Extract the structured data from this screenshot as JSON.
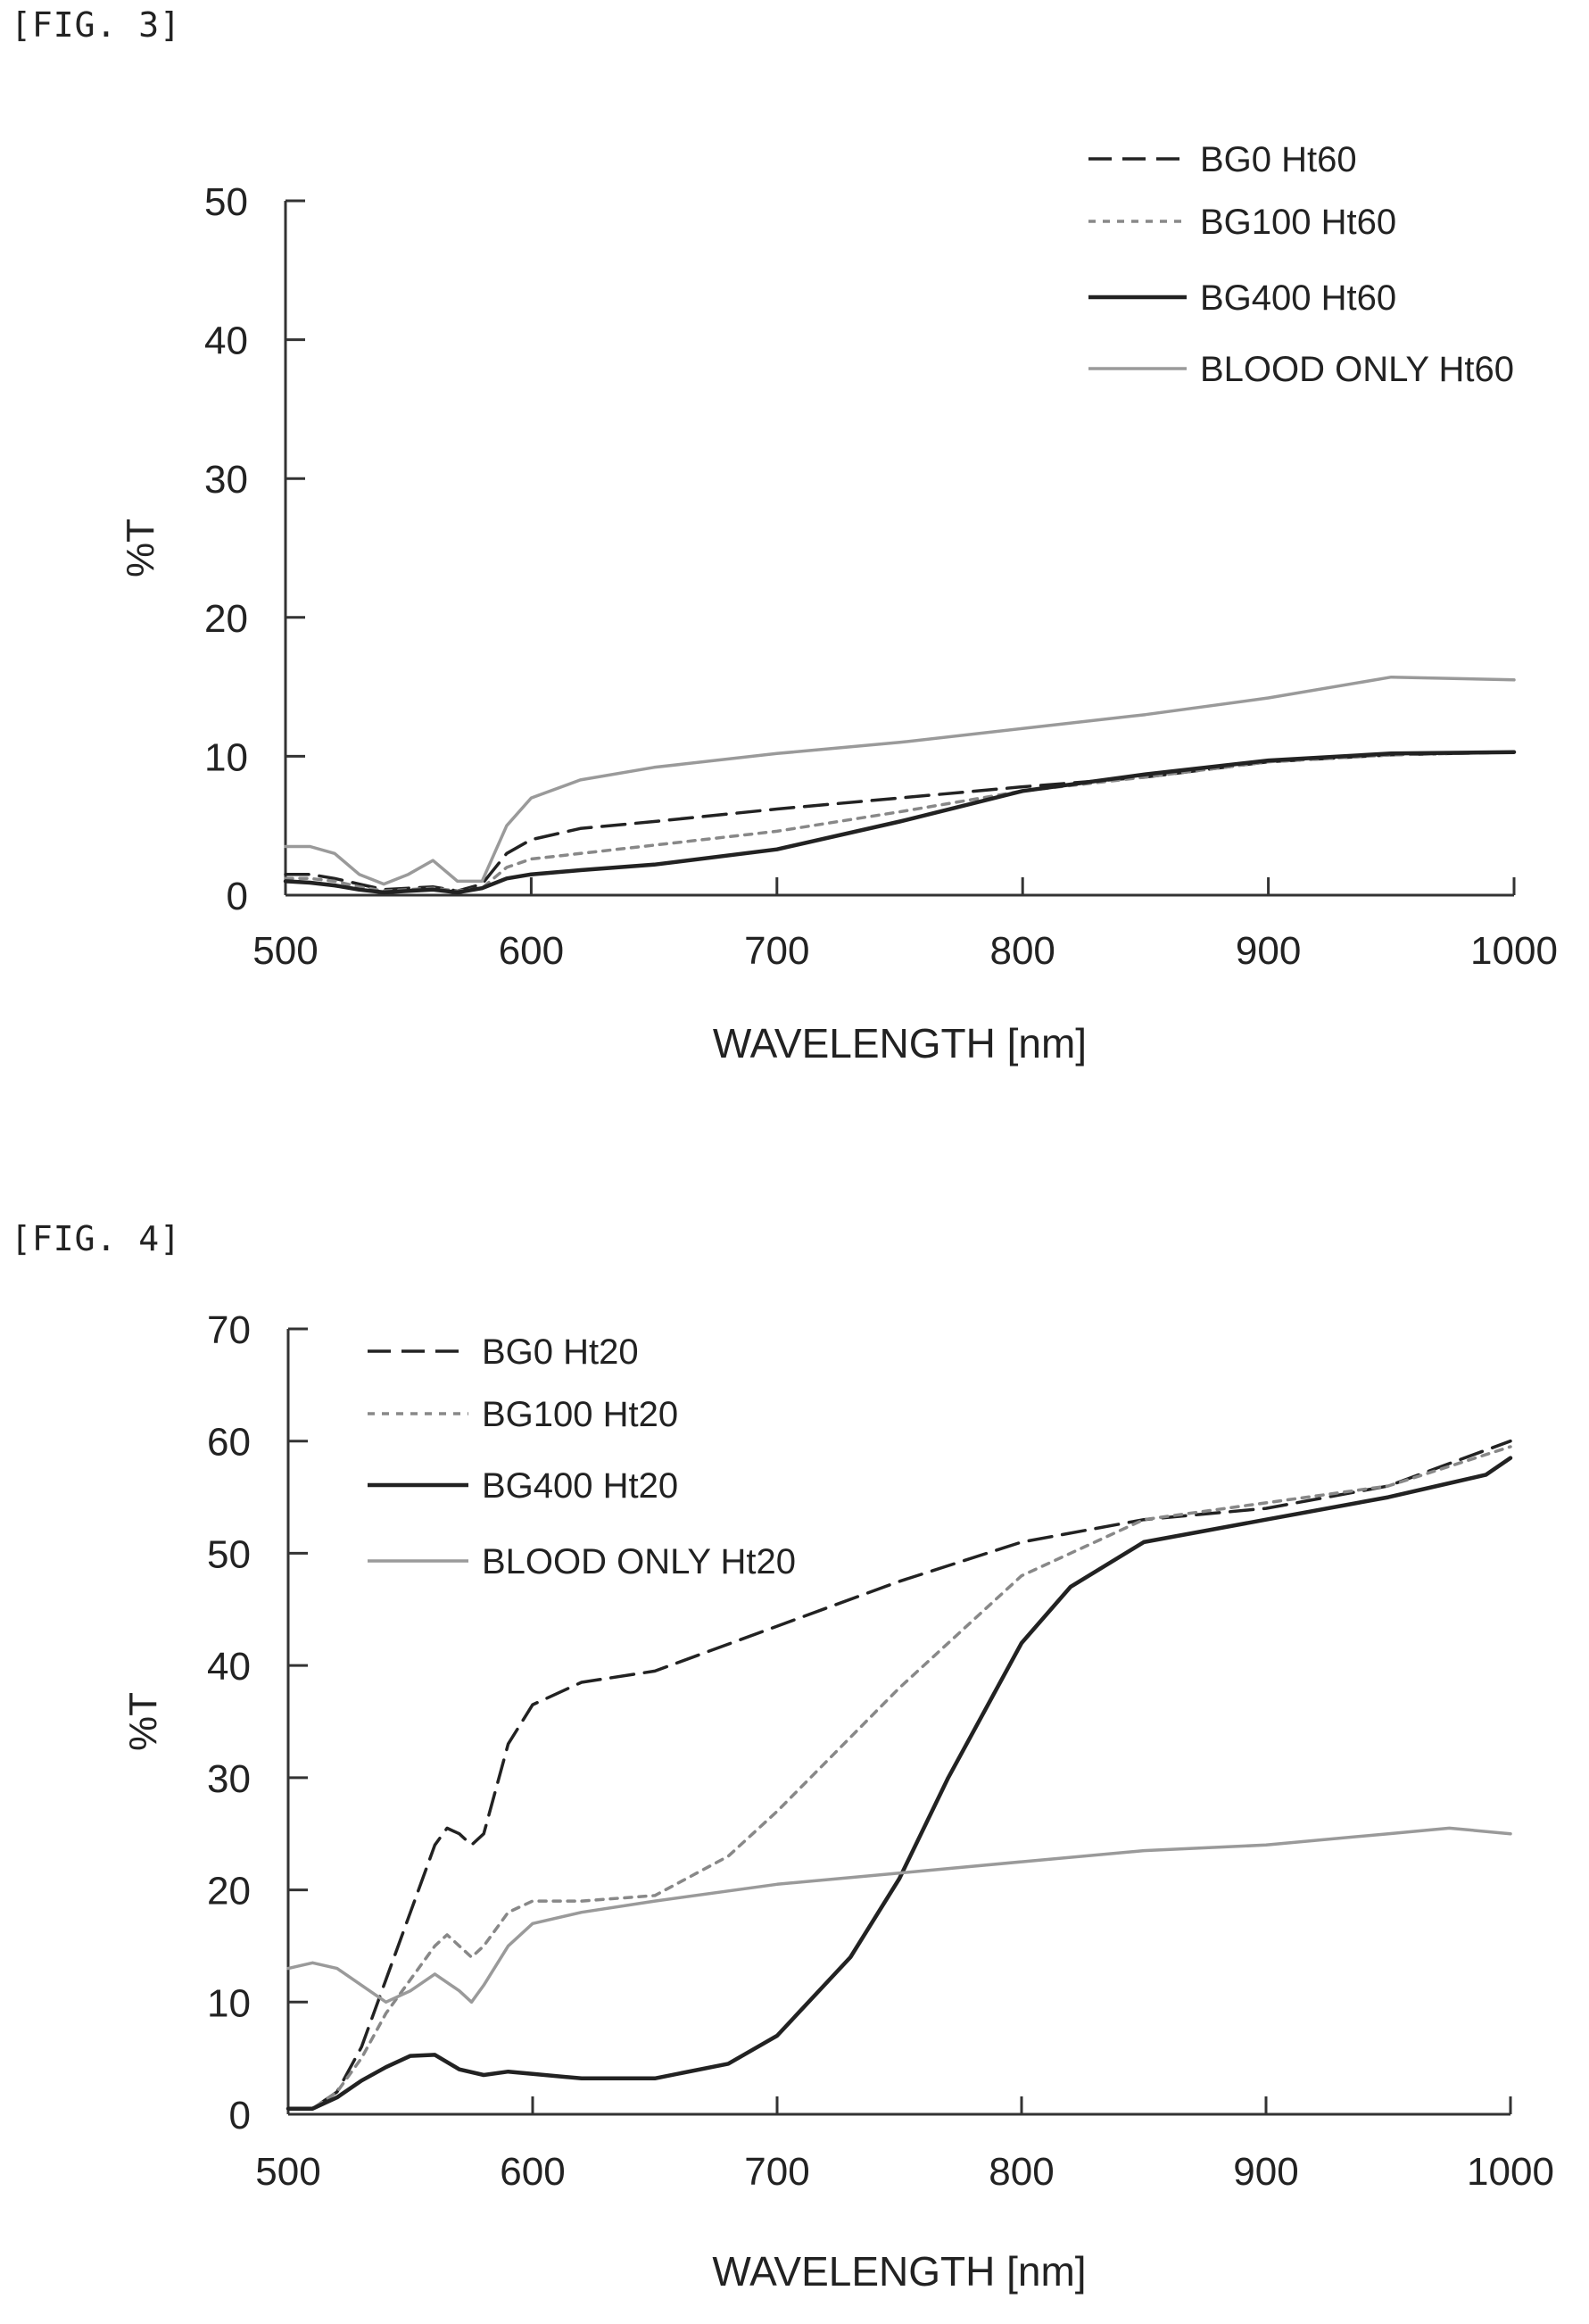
{
  "figures": [
    {
      "label": "[FIG. 3]",
      "chart_data": {
        "type": "line",
        "xlabel": "WAVELENGTH [nm]",
        "ylabel": "%T",
        "xlim": [
          500,
          1000
        ],
        "ylim": [
          0,
          50
        ],
        "xticks": [
          500,
          600,
          700,
          800,
          900,
          1000
        ],
        "yticks": [
          0,
          10,
          20,
          30,
          40,
          50
        ],
        "grid": false,
        "legend_position": "top-right",
        "series": [
          {
            "name": "BG0 Ht60",
            "color": "#222222",
            "style": "dashed",
            "x": [
              500,
              510,
              520,
              530,
              540,
              550,
              560,
              570,
              580,
              590,
              600,
              620,
              650,
              700,
              750,
              800,
              850,
              900,
              950,
              1000
            ],
            "y": [
              1.5,
              1.5,
              1.2,
              0.8,
              0.4,
              0.5,
              0.6,
              0.3,
              0.8,
              3.0,
              4.0,
              4.8,
              5.3,
              6.2,
              7.0,
              7.8,
              8.5,
              9.6,
              10.1,
              10.3
            ]
          },
          {
            "name": "BG100 Ht60",
            "color": "#888888",
            "style": "dotted",
            "x": [
              500,
              510,
              520,
              530,
              540,
              550,
              560,
              570,
              580,
              590,
              600,
              620,
              650,
              700,
              750,
              800,
              850,
              900,
              950,
              1000
            ],
            "y": [
              1.2,
              1.2,
              1.0,
              0.6,
              0.3,
              0.4,
              0.5,
              0.3,
              0.5,
              2.0,
              2.6,
              3.0,
              3.6,
              4.6,
              6.0,
              7.5,
              8.5,
              9.6,
              10.1,
              10.3
            ]
          },
          {
            "name": "BG400 Ht60",
            "color": "#222222",
            "style": "solid",
            "x": [
              500,
              510,
              520,
              530,
              540,
              550,
              560,
              570,
              580,
              590,
              600,
              620,
              650,
              700,
              750,
              800,
              850,
              900,
              950,
              1000
            ],
            "y": [
              1.0,
              0.9,
              0.7,
              0.4,
              0.2,
              0.3,
              0.4,
              0.2,
              0.5,
              1.2,
              1.5,
              1.8,
              2.2,
              3.3,
              5.3,
              7.5,
              8.7,
              9.7,
              10.2,
              10.3
            ]
          },
          {
            "name": "BLOOD ONLY Ht60",
            "color": "#9a9a9a",
            "style": "solid",
            "x": [
              500,
              510,
              520,
              530,
              540,
              550,
              560,
              570,
              580,
              590,
              600,
              620,
              650,
              700,
              750,
              800,
              850,
              900,
              950,
              1000
            ],
            "y": [
              3.5,
              3.5,
              3.0,
              1.5,
              0.8,
              1.5,
              2.5,
              1.0,
              1.0,
              5.0,
              7.0,
              8.3,
              9.2,
              10.2,
              11.0,
              12.0,
              13.0,
              14.2,
              15.7,
              15.5
            ]
          }
        ]
      }
    },
    {
      "label": "[FIG. 4]",
      "chart_data": {
        "type": "line",
        "xlabel": "WAVELENGTH [nm]",
        "ylabel": "%T",
        "xlim": [
          500,
          1000
        ],
        "ylim": [
          0,
          70
        ],
        "xticks": [
          500,
          600,
          700,
          800,
          900,
          1000
        ],
        "yticks": [
          0,
          10,
          20,
          30,
          40,
          50,
          60,
          70
        ],
        "grid": false,
        "legend_position": "top-left",
        "series": [
          {
            "name": "BG0 Ht20",
            "color": "#222222",
            "style": "dashed",
            "x": [
              500,
              510,
              520,
              530,
              540,
              550,
              560,
              565,
              570,
              575,
              580,
              590,
              600,
              620,
              650,
              700,
              750,
              800,
              850,
              900,
              950,
              1000
            ],
            "y": [
              0.5,
              0.5,
              2,
              6,
              12,
              18,
              24,
              25.5,
              25,
              24,
              25,
              33,
              36.5,
              38.5,
              39.5,
              43.5,
              47.5,
              51,
              53,
              54,
              56,
              60
            ]
          },
          {
            "name": "BG100 Ht20",
            "color": "#888888",
            "style": "dotted",
            "x": [
              500,
              510,
              520,
              530,
              540,
              550,
              560,
              565,
              570,
              575,
              580,
              590,
              600,
              620,
              650,
              680,
              700,
              750,
              800,
              850,
              900,
              950,
              1000
            ],
            "y": [
              0.5,
              0.5,
              2,
              5,
              9,
              12,
              15,
              16,
              15,
              14,
              15,
              18,
              19,
              19,
              19.5,
              23,
              27,
              38,
              48,
              53,
              54.5,
              56,
              59.5
            ]
          },
          {
            "name": "BG400 Ht20",
            "color": "#222222",
            "style": "solid",
            "x": [
              500,
              510,
              520,
              530,
              540,
              550,
              560,
              570,
              580,
              590,
              600,
              620,
              650,
              680,
              700,
              730,
              750,
              770,
              800,
              820,
              850,
              900,
              950,
              970,
              990,
              1000
            ],
            "y": [
              0.5,
              0.5,
              1.5,
              3,
              4.2,
              5.2,
              5.3,
              4,
              3.5,
              3.8,
              3.6,
              3.2,
              3.2,
              4.5,
              7,
              14,
              21,
              30,
              42,
              47,
              51,
              53,
              55,
              56,
              57,
              58.5
            ]
          },
          {
            "name": "BLOOD ONLY Ht20",
            "color": "#9a9a9a",
            "style": "solid",
            "x": [
              500,
              510,
              520,
              530,
              540,
              550,
              560,
              570,
              575,
              580,
              590,
              600,
              620,
              650,
              700,
              750,
              800,
              850,
              900,
              950,
              975,
              1000
            ],
            "y": [
              13,
              13.5,
              13,
              11.5,
              10,
              11,
              12.5,
              11,
              10,
              11.5,
              15,
              17,
              18,
              19,
              20.5,
              21.5,
              22.5,
              23.5,
              24,
              25,
              25.5,
              25
            ]
          }
        ]
      }
    }
  ]
}
